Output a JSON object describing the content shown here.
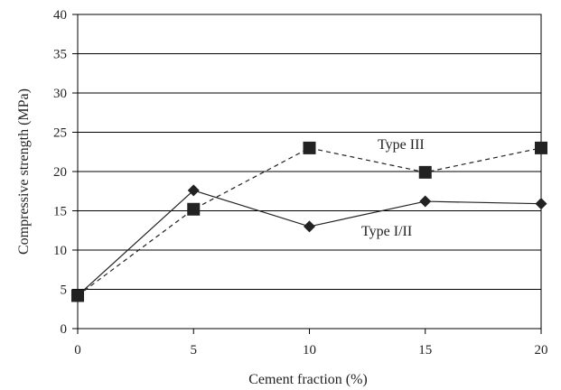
{
  "chart_data": {
    "type": "line",
    "title": "",
    "xlabel": "Cement fraction (%)",
    "ylabel": "Compressive strength (MPa)",
    "xlim": [
      0,
      20
    ],
    "ylim": [
      0,
      40
    ],
    "x_ticks": [
      "0",
      "5",
      "10",
      "15",
      "20"
    ],
    "y_ticks": [
      "0",
      "5",
      "10",
      "15",
      "20",
      "25",
      "30",
      "35",
      "40"
    ],
    "grid": "horizontal",
    "legend": "none",
    "series": [
      {
        "name": "Type III",
        "marker": "square",
        "line_style": "dashed",
        "color": "#222222",
        "x": [
          0,
          5,
          10,
          15,
          20
        ],
        "values": [
          4.2,
          15.2,
          23.0,
          19.9,
          23.0
        ]
      },
      {
        "name": "Type I/II",
        "marker": "diamond",
        "line_style": "solid",
        "color": "#222222",
        "x": [
          0,
          5,
          10,
          15,
          20
        ],
        "values": [
          4.2,
          17.6,
          13.0,
          16.2,
          15.9
        ]
      }
    ]
  }
}
